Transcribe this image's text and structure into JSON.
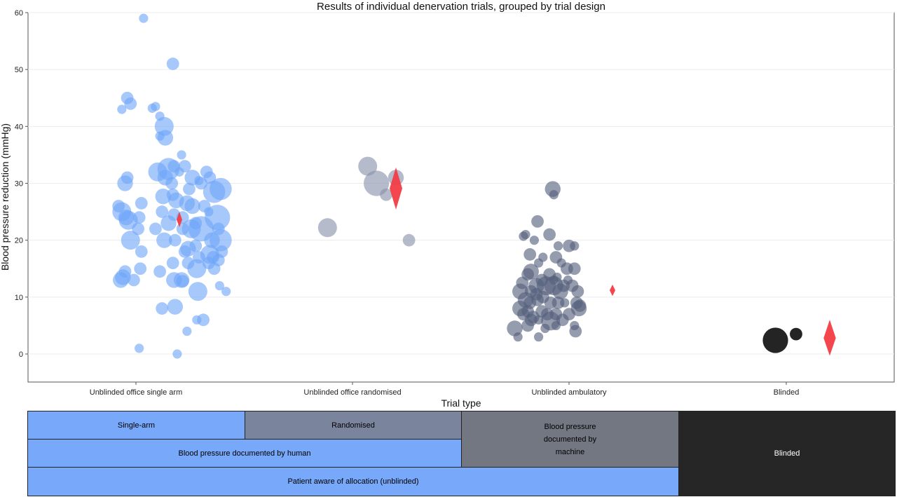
{
  "chart_data": {
    "type": "scatter",
    "title": "Results of individual denervation trials, grouped by trial design",
    "xlabel": "Trial type",
    "ylabel": "Blood pressure reduction (mmHg)",
    "ylim": [
      -5,
      60
    ],
    "yticks": [
      0,
      10,
      20,
      30,
      40,
      50,
      60
    ],
    "grid": "horizontal",
    "categories": [
      "Unblinded office single arm",
      "Unblinded office randomised",
      "Unblinded ambulatory",
      "Blinded"
    ],
    "colors": {
      "single_arm": "#6fa6f8",
      "randomised": "#8791aa",
      "ambulatory": "#54607a",
      "blinded": "#111111",
      "pooled_estimate": "#f23c46"
    },
    "series": [
      {
        "category": "Unblinded office single arm",
        "color": "#6fa6f8",
        "points": [
          {
            "x": 0.07,
            "y": 59,
            "size": 2
          },
          {
            "x": 0.34,
            "y": 51,
            "size": 3
          },
          {
            "x": -0.08,
            "y": 45,
            "size": 3
          },
          {
            "x": -0.05,
            "y": 44,
            "size": 3
          },
          {
            "x": -0.13,
            "y": 43,
            "size": 2
          },
          {
            "x": 0.18,
            "y": 43.5,
            "size": 2
          },
          {
            "x": 0.15,
            "y": 43.2,
            "size": 2
          },
          {
            "x": 0.26,
            "y": 40,
            "size": 5
          },
          {
            "x": 0.22,
            "y": 41.8,
            "size": 2
          },
          {
            "x": 0.27,
            "y": 38,
            "size": 4
          },
          {
            "x": 0.22,
            "y": 38.3,
            "size": 2
          },
          {
            "x": 0.42,
            "y": 35,
            "size": 2
          },
          {
            "x": 0.3,
            "y": 32.5,
            "size": 6
          },
          {
            "x": 0.2,
            "y": 32,
            "size": 5
          },
          {
            "x": 0.35,
            "y": 33,
            "size": 3
          },
          {
            "x": 0.45,
            "y": 33,
            "size": 3
          },
          {
            "x": 0.4,
            "y": 32,
            "size": 2
          },
          {
            "x": 0.27,
            "y": 31,
            "size": 4
          },
          {
            "x": 0.33,
            "y": 30,
            "size": 3
          },
          {
            "x": 0.52,
            "y": 31,
            "size": 4
          },
          {
            "x": 0.65,
            "y": 32,
            "size": 3
          },
          {
            "x": 0.68,
            "y": 31,
            "size": 3
          },
          {
            "x": 0.58,
            "y": 30.5,
            "size": 2
          },
          {
            "x": 0.49,
            "y": 29,
            "size": 3
          },
          {
            "x": -0.1,
            "y": 30,
            "size": 4
          },
          {
            "x": -0.08,
            "y": 31,
            "size": 3
          },
          {
            "x": 0.78,
            "y": 29,
            "size": 6
          },
          {
            "x": 0.6,
            "y": 30,
            "size": 3
          },
          {
            "x": 0.25,
            "y": 27.7,
            "size": 4
          },
          {
            "x": 0.37,
            "y": 27,
            "size": 4
          },
          {
            "x": 0.47,
            "y": 26.5,
            "size": 4
          },
          {
            "x": -0.16,
            "y": 26,
            "size": 3
          },
          {
            "x": 0.05,
            "y": 26.5,
            "size": 3
          },
          {
            "x": 0.34,
            "y": 28,
            "size": 3
          },
          {
            "x": 0.72,
            "y": 28.5,
            "size": 6
          },
          {
            "x": 0.63,
            "y": 26,
            "size": 3
          },
          {
            "x": 0.55,
            "y": 23,
            "size": 3
          },
          {
            "x": 0.43,
            "y": 24,
            "size": 3
          },
          {
            "x": 0.52,
            "y": 26,
            "size": 4
          },
          {
            "x": -0.13,
            "y": 25,
            "size": 5
          },
          {
            "x": -0.09,
            "y": 24,
            "size": 4
          },
          {
            "x": -0.07,
            "y": 23.5,
            "size": 5
          },
          {
            "x": 0.03,
            "y": 24,
            "size": 3
          },
          {
            "x": 0.24,
            "y": 25,
            "size": 3
          },
          {
            "x": 0.35,
            "y": 24.5,
            "size": 3
          },
          {
            "x": 0.67,
            "y": 25,
            "size": 2
          },
          {
            "x": 0.75,
            "y": 24,
            "size": 7
          },
          {
            "x": 0.76,
            "y": 22,
            "size": 3
          },
          {
            "x": 0.3,
            "y": 23,
            "size": 4
          },
          {
            "x": 0.43,
            "y": 22,
            "size": 3
          },
          {
            "x": 0.51,
            "y": 22,
            "size": 5
          },
          {
            "x": 0.6,
            "y": 22,
            "size": 7
          },
          {
            "x": 0.18,
            "y": 22,
            "size": 3
          },
          {
            "x": 0.02,
            "y": 22,
            "size": 3
          },
          {
            "x": 0.36,
            "y": 20,
            "size": 3
          },
          {
            "x": 0.26,
            "y": 20,
            "size": 4
          },
          {
            "x": -0.05,
            "y": 20,
            "size": 5
          },
          {
            "x": 0.55,
            "y": 19,
            "size": 3
          },
          {
            "x": 0.7,
            "y": 20,
            "size": 4
          },
          {
            "x": 0.78,
            "y": 20,
            "size": 6
          },
          {
            "x": 0.45,
            "y": 18,
            "size": 3
          },
          {
            "x": 0.48,
            "y": 18.5,
            "size": 4
          },
          {
            "x": 0.05,
            "y": 18,
            "size": 3
          },
          {
            "x": 0.58,
            "y": 17,
            "size": 3
          },
          {
            "x": 0.68,
            "y": 17.5,
            "size": 5
          },
          {
            "x": 0.71,
            "y": 17,
            "size": 3
          },
          {
            "x": 0.76,
            "y": 16.5,
            "size": 3
          },
          {
            "x": 0.79,
            "y": 18,
            "size": 3
          },
          {
            "x": 0.67,
            "y": 16,
            "size": 3
          },
          {
            "x": 0.34,
            "y": 16,
            "size": 3
          },
          {
            "x": 0.48,
            "y": 16,
            "size": 3
          },
          {
            "x": 0.72,
            "y": 15,
            "size": 3
          },
          {
            "x": 0.56,
            "y": 15,
            "size": 5
          },
          {
            "x": 0.04,
            "y": 15,
            "size": 3
          },
          {
            "x": 0.22,
            "y": 14.5,
            "size": 3
          },
          {
            "x": -0.1,
            "y": 14.5,
            "size": 3
          },
          {
            "x": -0.12,
            "y": 13.5,
            "size": 4
          },
          {
            "x": -0.14,
            "y": 13,
            "size": 4
          },
          {
            "x": -0.02,
            "y": 13,
            "size": 3
          },
          {
            "x": 0.35,
            "y": 13,
            "size": 4
          },
          {
            "x": 0.42,
            "y": 13,
            "size": 4
          },
          {
            "x": 0.43,
            "y": 12.8,
            "size": 3
          },
          {
            "x": 0.77,
            "y": 12,
            "size": 2
          },
          {
            "x": 0.57,
            "y": 11,
            "size": 5
          },
          {
            "x": 0.83,
            "y": 11,
            "size": 2
          },
          {
            "x": 0.36,
            "y": 8.3,
            "size": 4
          },
          {
            "x": 0.24,
            "y": 8,
            "size": 3
          },
          {
            "x": 0.62,
            "y": 6,
            "size": 3
          },
          {
            "x": 0.56,
            "y": 6,
            "size": 2
          },
          {
            "x": 0.47,
            "y": 4,
            "size": 2
          },
          {
            "x": 0.03,
            "y": 1,
            "size": 2
          },
          {
            "x": 0.38,
            "y": 0,
            "size": 2
          }
        ]
      },
      {
        "category": "Unblinded office randomised",
        "color": "#8791aa",
        "points": [
          {
            "x": -0.23,
            "y": 22.2,
            "size": 5
          },
          {
            "x": 0.14,
            "y": 33,
            "size": 5
          },
          {
            "x": 0.22,
            "y": 30,
            "size": 7
          },
          {
            "x": 0.31,
            "y": 28,
            "size": 3
          },
          {
            "x": 0.4,
            "y": 31,
            "size": 4
          },
          {
            "x": 0.52,
            "y": 20,
            "size": 3
          }
        ]
      },
      {
        "category": "Unblinded ambulatory",
        "color": "#54607a",
        "points": [
          {
            "x": -0.15,
            "y": 29,
            "size": 4
          },
          {
            "x": -0.14,
            "y": 28,
            "size": 2
          },
          {
            "x": -0.29,
            "y": 23.3,
            "size": 3
          },
          {
            "x": -0.4,
            "y": 21,
            "size": 2
          },
          {
            "x": -0.42,
            "y": 20.7,
            "size": 2
          },
          {
            "x": -0.18,
            "y": 21,
            "size": 3
          },
          {
            "x": -0.1,
            "y": 19,
            "size": 2
          },
          {
            "x": -0.32,
            "y": 20,
            "size": 2
          },
          {
            "x": 0.0,
            "y": 19,
            "size": 3
          },
          {
            "x": 0.05,
            "y": 19,
            "size": 2
          },
          {
            "x": -0.36,
            "y": 17.5,
            "size": 3
          },
          {
            "x": -0.24,
            "y": 17,
            "size": 2
          },
          {
            "x": -0.12,
            "y": 17,
            "size": 3
          },
          {
            "x": -0.28,
            "y": 16,
            "size": 2
          },
          {
            "x": -0.07,
            "y": 16,
            "size": 2
          },
          {
            "x": -0.02,
            "y": 15,
            "size": 3
          },
          {
            "x": 0.05,
            "y": 15,
            "size": 3
          },
          {
            "x": -0.35,
            "y": 14.5,
            "size": 4
          },
          {
            "x": -0.38,
            "y": 14,
            "size": 3
          },
          {
            "x": -0.18,
            "y": 14,
            "size": 3
          },
          {
            "x": -0.25,
            "y": 13,
            "size": 3
          },
          {
            "x": -0.14,
            "y": 13,
            "size": 2
          },
          {
            "x": -0.11,
            "y": 13.5,
            "size": 2
          },
          {
            "x": -0.01,
            "y": 13,
            "size": 2
          },
          {
            "x": -0.43,
            "y": 12.5,
            "size": 3
          },
          {
            "x": -0.3,
            "y": 12,
            "size": 4
          },
          {
            "x": -0.21,
            "y": 12,
            "size": 5
          },
          {
            "x": -0.14,
            "y": 12,
            "size": 5
          },
          {
            "x": -0.05,
            "y": 12,
            "size": 3
          },
          {
            "x": 0.03,
            "y": 12,
            "size": 3
          },
          {
            "x": -0.45,
            "y": 11,
            "size": 4
          },
          {
            "x": -0.35,
            "y": 11,
            "size": 3
          },
          {
            "x": -0.3,
            "y": 10.5,
            "size": 3
          },
          {
            "x": -0.24,
            "y": 10,
            "size": 3
          },
          {
            "x": -0.08,
            "y": 11,
            "size": 4
          },
          {
            "x": 0.08,
            "y": 11,
            "size": 3
          },
          {
            "x": -0.4,
            "y": 9.5,
            "size": 4
          },
          {
            "x": -0.36,
            "y": 9,
            "size": 3
          },
          {
            "x": -0.29,
            "y": 9.5,
            "size": 3
          },
          {
            "x": -0.17,
            "y": 9,
            "size": 3
          },
          {
            "x": -0.1,
            "y": 9,
            "size": 3
          },
          {
            "x": -0.04,
            "y": 9,
            "size": 2
          },
          {
            "x": 0.07,
            "y": 9,
            "size": 3
          },
          {
            "x": 0.1,
            "y": 8.5,
            "size": 3
          },
          {
            "x": -0.45,
            "y": 8,
            "size": 4
          },
          {
            "x": -0.38,
            "y": 7.5,
            "size": 3
          },
          {
            "x": -0.25,
            "y": 7.5,
            "size": 3
          },
          {
            "x": -0.2,
            "y": 7,
            "size": 3
          },
          {
            "x": -0.12,
            "y": 7,
            "size": 3
          },
          {
            "x": 0.0,
            "y": 7,
            "size": 3
          },
          {
            "x": 0.09,
            "y": 8,
            "size": 4
          },
          {
            "x": -0.42,
            "y": 7,
            "size": 3
          },
          {
            "x": -0.33,
            "y": 6.5,
            "size": 3
          },
          {
            "x": -0.28,
            "y": 6,
            "size": 2
          },
          {
            "x": -0.17,
            "y": 5.8,
            "size": 5
          },
          {
            "x": -0.06,
            "y": 6,
            "size": 3
          },
          {
            "x": -0.35,
            "y": 6,
            "size": 3
          },
          {
            "x": -0.38,
            "y": 5,
            "size": 3
          },
          {
            "x": -0.5,
            "y": 4.5,
            "size": 4
          },
          {
            "x": -0.22,
            "y": 4.5,
            "size": 2
          },
          {
            "x": -0.12,
            "y": 5,
            "size": 2
          },
          {
            "x": 0.05,
            "y": 5,
            "size": 2
          },
          {
            "x": 0.06,
            "y": 4,
            "size": 3
          },
          {
            "x": -0.47,
            "y": 3,
            "size": 2
          },
          {
            "x": -0.28,
            "y": 3,
            "size": 2
          }
        ]
      },
      {
        "category": "Blinded",
        "color": "#111111",
        "points": [
          {
            "x": -0.1,
            "y": 2.4,
            "size": 7
          },
          {
            "x": 0.09,
            "y": 3.5,
            "size": 3
          }
        ]
      }
    ],
    "pooled_estimates": [
      {
        "category": "Unblinded office single arm",
        "y": 23.6,
        "low": 22.3,
        "high": 25.0
      },
      {
        "category": "Unblinded office randomised",
        "y": 29.1,
        "low": 25.4,
        "high": 32.8
      },
      {
        "category": "Unblinded ambulatory",
        "y": 11.2,
        "low": 10.2,
        "high": 12.2
      },
      {
        "category": "Blinded",
        "y": 2.8,
        "low": -0.3,
        "high": 6.0
      }
    ]
  },
  "legend_table": {
    "single_arm": "Single-arm",
    "randomised": "Randomised",
    "bp_human": "Blood pressure documented by human",
    "bp_machine": "Blood pressure documented by machine",
    "unblinded": "Patient aware of allocation (unblinded)",
    "blinded": "Blinded"
  }
}
